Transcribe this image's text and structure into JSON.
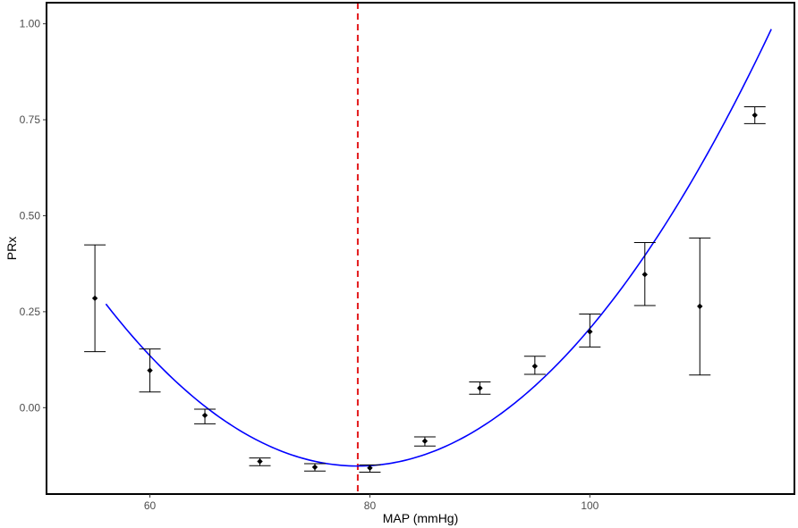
{
  "chart_data": {
    "type": "scatter",
    "title": "",
    "xlabel": "MAP (mmHg)",
    "ylabel": "PRx",
    "xlim": [
      50.6,
      118.6
    ],
    "ylim": [
      -0.225,
      1.055
    ],
    "x_ticks": [
      60,
      80,
      100
    ],
    "x_tick_labels": [
      "60",
      "80",
      "100"
    ],
    "y_ticks": [
      0.0,
      0.25,
      0.5,
      0.75,
      1.0
    ],
    "y_tick_labels": [
      "0.00",
      "0.25",
      "0.50",
      "0.75",
      "1.00"
    ],
    "grid": false,
    "legend": "none",
    "points": [
      {
        "x": 55,
        "y": 0.285,
        "lower": 0.146,
        "upper": 0.424
      },
      {
        "x": 60,
        "y": 0.097,
        "lower": 0.041,
        "upper": 0.153
      },
      {
        "x": 65,
        "y": -0.02,
        "lower": -0.042,
        "upper": -0.004
      },
      {
        "x": 70,
        "y": -0.14,
        "lower": -0.151,
        "upper": -0.131
      },
      {
        "x": 75,
        "y": -0.155,
        "lower": -0.165,
        "upper": -0.146
      },
      {
        "x": 80,
        "y": -0.157,
        "lower": -0.168,
        "upper": -0.149
      },
      {
        "x": 85,
        "y": -0.087,
        "lower": -0.1,
        "upper": -0.076
      },
      {
        "x": 90,
        "y": 0.051,
        "lower": 0.035,
        "upper": 0.067
      },
      {
        "x": 95,
        "y": 0.108,
        "lower": 0.087,
        "upper": 0.134
      },
      {
        "x": 100,
        "y": 0.198,
        "lower": 0.158,
        "upper": 0.244
      },
      {
        "x": 105,
        "y": 0.347,
        "lower": 0.266,
        "upper": 0.43
      },
      {
        "x": 110,
        "y": 0.264,
        "lower": 0.085,
        "upper": 0.442
      },
      {
        "x": 115,
        "y": 0.762,
        "lower": 0.74,
        "upper": 0.784
      }
    ],
    "fit_curve": {
      "type": "quadratic",
      "x_range": [
        56,
        116.5
      ],
      "vertex_x": 78.9,
      "vertex_y": -0.152,
      "a": 0.000805,
      "color": "#0000ff"
    },
    "reference_line": {
      "x": 78.9,
      "style": "dashed",
      "color": "#e31a1c"
    },
    "colors": {
      "points": "#000000",
      "errorbars": "#000000",
      "panel_border": "#000000"
    }
  }
}
